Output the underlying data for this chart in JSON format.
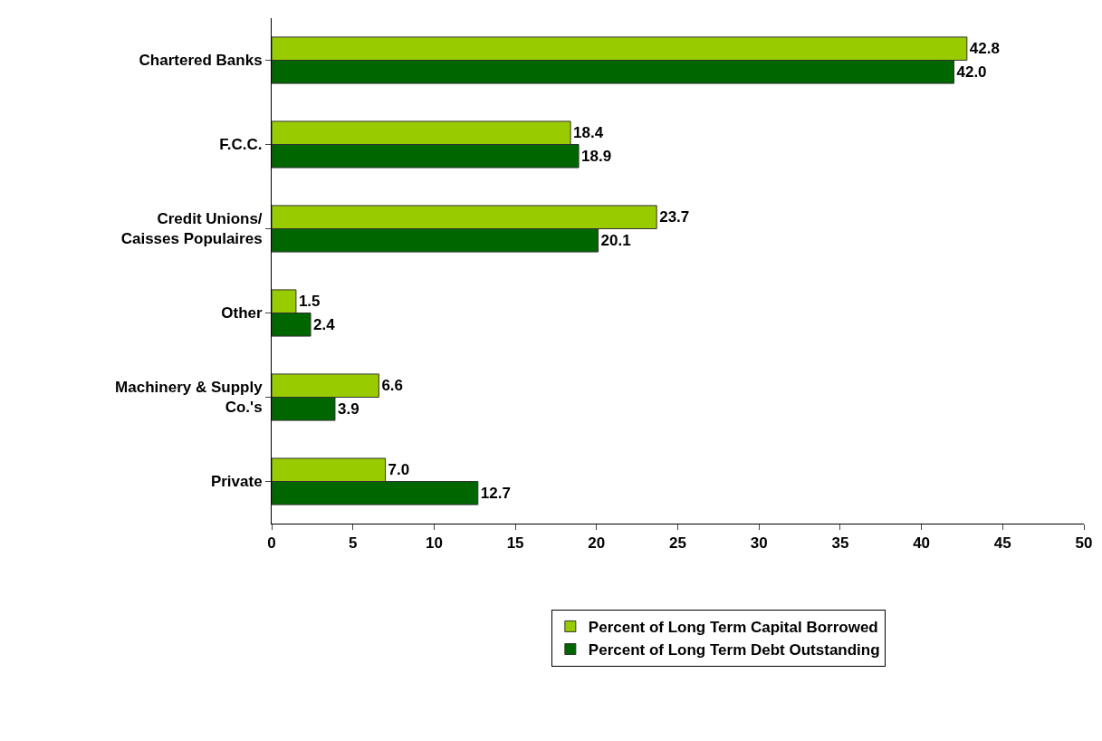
{
  "chart_data": {
    "type": "bar",
    "orientation": "horizontal",
    "categories": [
      "Chartered Banks",
      "F.C.C.",
      "Credit Unions/\nCaisses Populaires",
      "Other",
      "Machinery & Supply\nCo.'s",
      "Private"
    ],
    "series": [
      {
        "name": "Percent of Long Term Capital Borrowed",
        "color": "#99cc00",
        "values": [
          42.8,
          18.4,
          23.7,
          1.5,
          6.6,
          7.0
        ],
        "value_labels": [
          "42.8",
          "18.4",
          "23.7",
          "1.5",
          "6.6",
          "7.0"
        ]
      },
      {
        "name": "Percent of Long Term Debt Outstanding",
        "color": "#006600",
        "values": [
          42.0,
          18.9,
          20.1,
          2.4,
          3.9,
          12.7
        ],
        "value_labels": [
          "42.0",
          "18.9",
          "20.1",
          "2.4",
          "3.9",
          "12.7"
        ]
      }
    ],
    "xlim": [
      0,
      50
    ],
    "xticks": [
      0,
      5,
      10,
      15,
      20,
      25,
      30,
      35,
      40,
      45,
      50
    ],
    "legend": "bottom"
  }
}
